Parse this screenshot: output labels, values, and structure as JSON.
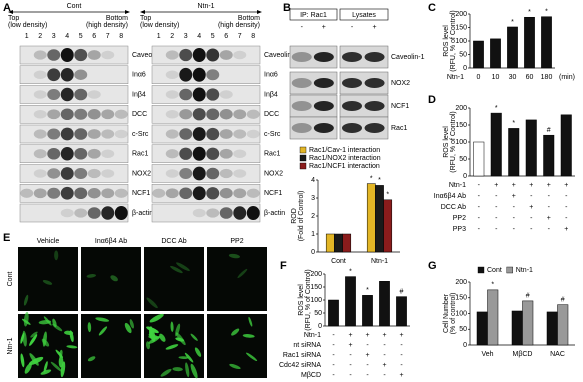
{
  "panel_labels": [
    "A",
    "B",
    "C",
    "D",
    "E",
    "F",
    "G"
  ],
  "blot_a": {
    "groups": [
      "Cont",
      "Ntn-1"
    ],
    "top": "Top",
    "top_sub": "(low density)",
    "bottom": "Bottom",
    "bottom_sub": "(high density)",
    "lanes": [
      "1",
      "2",
      "3",
      "4",
      "5",
      "6",
      "7",
      "8"
    ],
    "rows": [
      "Caveolin-1",
      "Inα6",
      "Inβ4",
      "DCC",
      "c-Src",
      "Rac1",
      "NOX2",
      "NCF1",
      "β-actin"
    ]
  },
  "blot_b": {
    "headers": [
      "IP: Rac1",
      "Lysates"
    ],
    "signs": [
      "-",
      "+",
      "-",
      "+"
    ],
    "rows": [
      "Caveolin-1",
      "NOX2",
      "NCF1",
      "Rac1"
    ]
  },
  "images_e": {
    "columns": [
      "Vehicle",
      "Inα6β4 Ab",
      "DCC Ab",
      "PP2"
    ],
    "rows": [
      "Cont",
      "Ntn-1"
    ]
  },
  "chart_data": [
    {
      "type": "bar",
      "ylabel": [
        "ROD",
        "(Fold of Control)"
      ],
      "categories": [
        "Cont",
        "Ntn-1"
      ],
      "series": [
        {
          "name": "Rac1/Cav-1 interaction",
          "color": "#e3b626",
          "values": [
            1,
            3.8
          ],
          "annotations": [
            null,
            "*"
          ]
        },
        {
          "name": "Rac1/NOX2 interaction",
          "color": "#1a1a1a",
          "values": [
            1,
            3.7
          ],
          "annotations": [
            null,
            "*"
          ]
        },
        {
          "name": "Rac1/NCF1 interaction",
          "color": "#8b1c1c",
          "values": [
            1,
            2.9
          ],
          "annotations": [
            null,
            "*"
          ]
        }
      ],
      "ylim": [
        0,
        4
      ],
      "yticks": [
        0,
        1,
        2,
        3,
        4
      ],
      "legend": "top"
    },
    {
      "type": "bar",
      "ylabel": [
        "ROS level",
        "(RFU, % of Control)"
      ],
      "xlabel": "Ntn-1",
      "xunit": "(min)",
      "categories": [
        "0",
        "10",
        "30",
        "60",
        "180"
      ],
      "series": [
        {
          "color": "#111111",
          "values": [
            100,
            108,
            152,
            188,
            190
          ],
          "annotations": [
            null,
            null,
            "*",
            "*",
            "*"
          ]
        }
      ],
      "ylim": [
        0,
        200
      ],
      "yticks": [
        0,
        50,
        100,
        150,
        200
      ]
    },
    {
      "type": "bar",
      "ylabel": [
        "ROS level",
        "(RFU, % of Control)"
      ],
      "series": [
        {
          "colors": [
            "#ffffff",
            "#111111",
            "#111111",
            "#111111",
            "#111111",
            "#111111"
          ],
          "values": [
            100,
            185,
            140,
            165,
            120,
            180
          ],
          "annotations": [
            null,
            "*",
            "*",
            null,
            "#",
            null
          ]
        }
      ],
      "conditions": [
        {
          "label": "Ntn-1",
          "signs": [
            "-",
            "+",
            "+",
            "+",
            "+",
            "+"
          ]
        },
        {
          "label": "Inα6β4 Ab",
          "signs": [
            "-",
            "-",
            "+",
            "-",
            "-",
            "-"
          ]
        },
        {
          "label": "DCC Ab",
          "signs": [
            "-",
            "-",
            "-",
            "+",
            "-",
            "-"
          ]
        },
        {
          "label": "PP2",
          "signs": [
            "-",
            "-",
            "-",
            "-",
            "+",
            "-"
          ]
        },
        {
          "label": "PP3",
          "signs": [
            "-",
            "-",
            "-",
            "-",
            "-",
            "+"
          ]
        }
      ],
      "ylim": [
        0,
        200
      ],
      "yticks": [
        0,
        50,
        100,
        150,
        200
      ]
    },
    {
      "type": "bar",
      "ylabel": [
        "ROS level",
        "(RFU, % of Control)"
      ],
      "series": [
        {
          "color": "#111111",
          "values": [
            100,
            190,
            118,
            172,
            113
          ],
          "annotations": [
            null,
            "*",
            "*",
            null,
            "#"
          ]
        }
      ],
      "conditions": [
        {
          "label": "Ntn-1",
          "signs": [
            "-",
            "+",
            "+",
            "+",
            "+"
          ]
        },
        {
          "label": "nt siRNA",
          "signs": [
            "-",
            "+",
            "-",
            "-",
            "-"
          ]
        },
        {
          "label": "Rac1 siRNA",
          "signs": [
            "-",
            "-",
            "+",
            "-",
            "-"
          ]
        },
        {
          "label": "Cdc42 siRNA",
          "signs": [
            "-",
            "-",
            "-",
            "+",
            "-"
          ]
        },
        {
          "label": "MβCD",
          "signs": [
            "-",
            "-",
            "-",
            "-",
            "+"
          ]
        }
      ],
      "ylim": [
        0,
        200
      ],
      "yticks": [
        0,
        50,
        100,
        150,
        200
      ]
    },
    {
      "type": "bar",
      "ylabel": [
        "Cell Number",
        "(% of control)"
      ],
      "categories": [
        "Veh",
        "MβCD",
        "NAC"
      ],
      "series": [
        {
          "name": "Cont",
          "color": "#111111",
          "values": [
            105,
            108,
            105
          ],
          "annotations": [
            null,
            null,
            null
          ]
        },
        {
          "name": "Ntn-1",
          "color": "#999999",
          "values": [
            175,
            140,
            128
          ],
          "annotations": [
            "*",
            "#",
            "#"
          ]
        }
      ],
      "ylim": [
        0,
        200
      ],
      "yticks": [
        0,
        50,
        100,
        150,
        200
      ],
      "legend": "top"
    }
  ]
}
